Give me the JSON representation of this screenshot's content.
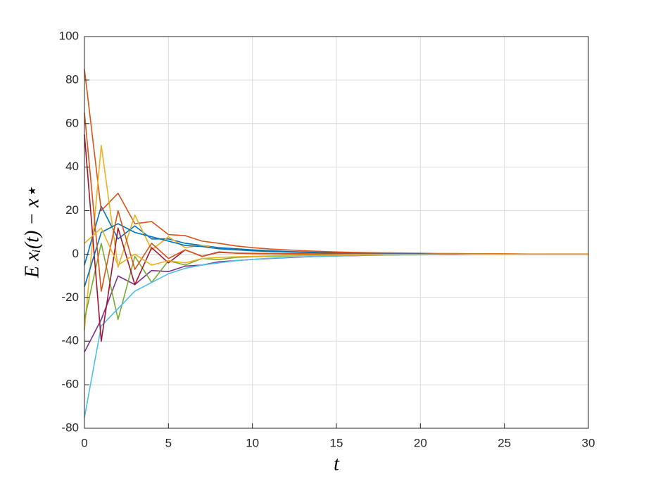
{
  "chart_data": {
    "type": "line",
    "xlabel": "t",
    "ylabel": "E xᵢ(t) − x⋆",
    "x": [
      0,
      1,
      2,
      3,
      4,
      5,
      6,
      7,
      8,
      9,
      10,
      11,
      12,
      13,
      14,
      15,
      16,
      17,
      18,
      19,
      20,
      21,
      22,
      23,
      24,
      25,
      26,
      27,
      28,
      29,
      30
    ],
    "xlim": [
      0,
      30
    ],
    "xticks": [
      0,
      5,
      10,
      15,
      20,
      25,
      30
    ],
    "ylim": [
      -80,
      100
    ],
    "yticks": [
      -80,
      -60,
      -40,
      -20,
      0,
      20,
      40,
      60,
      80,
      100
    ],
    "grid": true,
    "series": [
      {
        "color": "#0072BD",
        "values": [
          -5,
          22,
          7,
          13,
          7,
          7,
          5,
          4,
          3,
          2.5,
          2,
          1.6,
          1.3,
          1,
          0.8,
          0.6,
          0.5,
          0.4,
          0.3,
          0.3,
          0.2,
          0.2,
          0.1,
          0.1,
          0.1,
          0.1,
          0.1,
          0,
          0,
          0,
          0
        ]
      },
      {
        "color": "#D95319",
        "values": [
          85,
          20,
          28,
          14,
          15,
          9,
          8.5,
          6,
          5,
          3.8,
          3,
          2.4,
          2,
          1.6,
          1.3,
          1,
          0.8,
          0.7,
          0.6,
          0.5,
          0.4,
          0.3,
          0.3,
          0.2,
          0.2,
          0.2,
          0.1,
          0.1,
          0.1,
          0.1,
          0.1
        ]
      },
      {
        "color": "#EDB120",
        "values": [
          -35,
          50,
          -6,
          18,
          2,
          8,
          3,
          4,
          2.5,
          2,
          1.5,
          1.2,
          1,
          0.8,
          0.6,
          0.5,
          0.4,
          0.3,
          0.3,
          0.2,
          0.2,
          0.1,
          0.1,
          0.1,
          0.1,
          0,
          0,
          0,
          0,
          0,
          0
        ]
      },
      {
        "color": "#7E2F8E",
        "values": [
          -45,
          -30,
          -10,
          -14,
          -7.5,
          -8,
          -5.5,
          -5,
          -3.5,
          -3,
          -2.4,
          -2,
          -1.6,
          -1.3,
          -1,
          -0.8,
          -0.7,
          -0.5,
          -0.4,
          -0.3,
          -0.3,
          -0.2,
          -0.2,
          -0.1,
          -0.1,
          -0.1,
          -0.1,
          -0.1,
          0,
          0,
          0
        ]
      },
      {
        "color": "#77AC30",
        "values": [
          -30,
          5,
          -30,
          -1,
          -13,
          -3,
          -5,
          -2,
          -2.5,
          -1.5,
          -1.2,
          -1,
          -0.8,
          -0.6,
          -0.5,
          -0.4,
          -0.3,
          -0.2,
          -0.2,
          -0.1,
          -0.1,
          -0.1,
          0,
          0,
          0,
          0,
          0,
          0,
          0,
          0,
          0
        ]
      },
      {
        "color": "#4DBEEE",
        "values": [
          -75,
          -33,
          -25,
          -17,
          -13,
          -9,
          -6.5,
          -5,
          -4,
          -3,
          -2.4,
          -1.9,
          -1.5,
          -1.2,
          -1,
          -0.8,
          -0.6,
          -0.5,
          -0.4,
          -0.3,
          -0.2,
          -0.2,
          -0.1,
          -0.1,
          -0.1,
          -0.1,
          0,
          0,
          0,
          0,
          0
        ]
      },
      {
        "color": "#A2142F",
        "values": [
          55,
          -40,
          12,
          -14,
          3,
          -4,
          2,
          -1,
          1,
          0.5,
          0.3,
          0.2,
          0.1,
          0.1,
          0.1,
          0,
          0,
          0,
          0,
          0,
          0,
          0,
          0,
          0,
          0,
          0,
          0,
          0,
          0,
          0,
          0
        ]
      },
      {
        "color": "#0072BD",
        "values": [
          -15,
          10,
          14,
          10,
          8,
          6,
          4,
          3.5,
          2.5,
          2,
          1.6,
          1.2,
          1,
          0.8,
          0.6,
          0.5,
          0.4,
          0.3,
          0.2,
          0.2,
          0.2,
          0.1,
          0.1,
          0.1,
          0.1,
          0,
          0,
          0,
          0,
          0,
          0
        ]
      },
      {
        "color": "#D95319",
        "values": [
          65,
          -17,
          20,
          -7,
          5,
          -2,
          2,
          -1,
          0.8,
          0.5,
          0.4,
          0.3,
          0.2,
          0.2,
          0.1,
          0.1,
          0.1,
          0.1,
          0,
          0,
          0,
          0,
          0,
          0,
          0,
          0,
          0,
          0,
          0,
          0,
          0
        ]
      },
      {
        "color": "#EDB120",
        "values": [
          5,
          12,
          -5,
          0,
          -5,
          -3,
          -4,
          -2,
          -1.5,
          -1.2,
          -1,
          -0.8,
          -0.6,
          -0.5,
          -0.4,
          -0.3,
          -0.2,
          -0.2,
          -0.1,
          -0.1,
          -0.1,
          0,
          0,
          0,
          0,
          0,
          0,
          0,
          0,
          0,
          0
        ]
      }
    ]
  }
}
